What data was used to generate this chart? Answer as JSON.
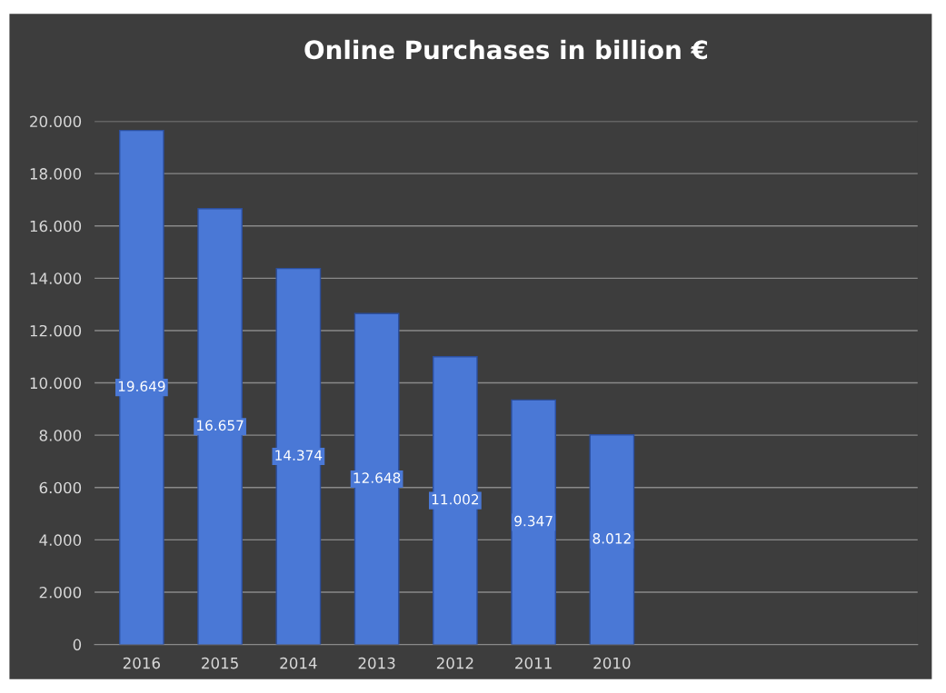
{
  "chart_data": {
    "type": "bar",
    "title": "Online Purchases in billion €",
    "categories": [
      "2016",
      "2015",
      "2014",
      "2013",
      "2012",
      "2011",
      "2010"
    ],
    "values": [
      19649,
      16657,
      14374,
      12648,
      11002,
      9347,
      8012
    ],
    "value_labels": [
      "19.649",
      "16.657",
      "14.374",
      "12.648",
      "11.002",
      "9.347",
      "8.012"
    ],
    "color": "#4a78d6",
    "ylim": [
      0,
      20000
    ],
    "yticks": [
      0,
      {
        "value": 2000,
        "label": "2.000"
      },
      {
        "value": 4000,
        "label": "4.000"
      },
      {
        "value": 6000,
        "label": "6.000"
      },
      {
        "value": 8000,
        "label": "8.000"
      },
      {
        "value": 10000,
        "label": "10.000"
      },
      {
        "value": 12000,
        "label": "12.000"
      },
      {
        "value": 14000,
        "label": "14.000"
      },
      {
        "value": 16000,
        "label": "16.000"
      },
      {
        "value": 18000,
        "label": "18.000"
      },
      {
        "value": 20000,
        "label": "20.000"
      }
    ],
    "grid": "y"
  }
}
